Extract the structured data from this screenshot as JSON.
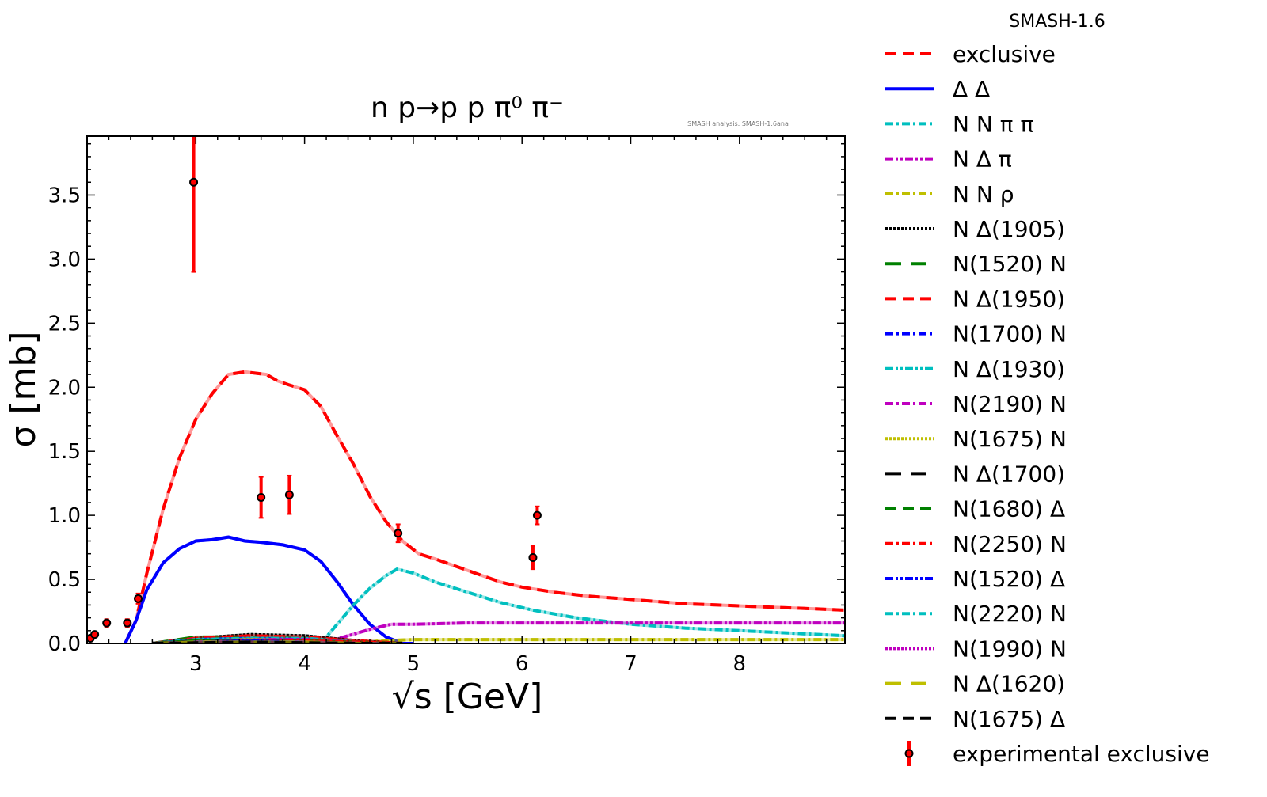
{
  "chart_data": {
    "type": "line",
    "title": "n p→p p π⁰ π⁻",
    "annotation": "SMASH analysis: SMASH-1.6ana",
    "xlabel": "√s [GeV]",
    "ylabel": "σ [mb]",
    "xlim": [
      2.0,
      8.97
    ],
    "ylim": [
      0.0,
      3.96
    ],
    "x_ticks": [
      3,
      4,
      5,
      6,
      7,
      8
    ],
    "x_tick_labels": [
      "3",
      "4",
      "5",
      "6",
      "7",
      "8"
    ],
    "y_ticks": [
      0.0,
      0.5,
      1.0,
      1.5,
      2.0,
      2.5,
      3.0,
      3.5
    ],
    "y_tick_labels": [
      "0.0",
      "0.5",
      "1.0",
      "1.5",
      "2.0",
      "2.5",
      "3.0",
      "3.5"
    ],
    "grid": false,
    "legend": {
      "title": "SMASH-1.6",
      "placement": "outside-right"
    },
    "series": [
      {
        "name": "exclusive",
        "color": "#ff0000",
        "style": "dashed",
        "x": [
          2.35,
          2.45,
          2.55,
          2.7,
          2.85,
          3.0,
          3.15,
          3.3,
          3.45,
          3.55,
          3.65,
          3.75,
          3.85,
          4.0,
          4.15,
          4.3,
          4.45,
          4.6,
          4.75,
          4.9,
          5.05,
          5.2,
          5.4,
          5.6,
          5.8,
          6.0,
          6.3,
          6.6,
          6.9,
          7.2,
          7.5,
          7.8,
          8.1,
          8.4,
          8.7,
          8.97
        ],
        "y": [
          0.0,
          0.18,
          0.55,
          1.05,
          1.45,
          1.75,
          1.95,
          2.1,
          2.12,
          2.11,
          2.1,
          2.05,
          2.02,
          1.98,
          1.85,
          1.62,
          1.4,
          1.15,
          0.95,
          0.8,
          0.7,
          0.66,
          0.6,
          0.54,
          0.48,
          0.44,
          0.4,
          0.37,
          0.35,
          0.33,
          0.31,
          0.3,
          0.29,
          0.28,
          0.27,
          0.26
        ]
      },
      {
        "name": "Δ Δ",
        "color": "#0000ff",
        "style": "dashed-dot",
        "x": [
          2.35,
          2.45,
          2.55,
          2.7,
          2.85,
          3.0,
          3.15,
          3.3,
          3.45,
          3.6,
          3.8,
          4.0,
          4.15,
          4.3,
          4.45,
          4.6,
          4.75,
          4.9,
          5.0
        ],
        "y": [
          0.0,
          0.18,
          0.42,
          0.63,
          0.74,
          0.8,
          0.81,
          0.83,
          0.8,
          0.79,
          0.77,
          0.73,
          0.64,
          0.48,
          0.3,
          0.15,
          0.05,
          0.0,
          0.0
        ]
      },
      {
        "name": "N N π π",
        "color": "#00bfbf",
        "style": "dash-dot",
        "x": [
          4.15,
          4.3,
          4.45,
          4.6,
          4.75,
          4.85,
          5.0,
          5.2,
          5.5,
          5.8,
          6.1,
          6.5,
          7.0,
          7.5,
          8.0,
          8.5,
          8.97
        ],
        "y": [
          0.0,
          0.15,
          0.3,
          0.43,
          0.53,
          0.58,
          0.55,
          0.48,
          0.4,
          0.32,
          0.26,
          0.2,
          0.15,
          0.12,
          0.1,
          0.08,
          0.06
        ]
      },
      {
        "name": "N Δ π",
        "color": "#bf00bf",
        "style": "dash-dot-dot",
        "x": [
          4.15,
          4.4,
          4.6,
          4.8,
          5.0,
          5.5,
          6.0,
          6.5,
          7.0,
          7.5,
          8.0,
          8.5,
          8.97
        ],
        "y": [
          0.0,
          0.06,
          0.11,
          0.15,
          0.15,
          0.16,
          0.16,
          0.16,
          0.16,
          0.16,
          0.16,
          0.16,
          0.16
        ]
      },
      {
        "name": "N N ρ",
        "color": "#bfbf00",
        "style": "dash-dot",
        "x": [
          4.4,
          4.7,
          5.0,
          6.0,
          7.0,
          8.0,
          8.97
        ],
        "y": [
          0.0,
          0.02,
          0.03,
          0.03,
          0.03,
          0.03,
          0.03
        ]
      },
      {
        "name": "N Δ(1905)",
        "color": "#000000",
        "style": "dotted",
        "x": [
          2.6,
          3.0,
          3.5,
          4.0,
          4.5,
          4.9
        ],
        "y": [
          0.0,
          0.04,
          0.07,
          0.06,
          0.02,
          0.0
        ]
      },
      {
        "name": "N(1520) N",
        "color": "#008000",
        "style": "long-dashed",
        "x": [
          2.6,
          3.0,
          3.5,
          4.0,
          4.5,
          4.9
        ],
        "y": [
          0.0,
          0.05,
          0.05,
          0.04,
          0.01,
          0.0
        ]
      },
      {
        "name": "N Δ(1950)",
        "color": "#ff0000",
        "style": "dashed",
        "x": [
          2.6,
          3.0,
          3.5,
          4.0,
          4.5,
          4.9
        ],
        "y": [
          0.0,
          0.04,
          0.06,
          0.05,
          0.02,
          0.0
        ]
      },
      {
        "name": "N(1700) N",
        "color": "#0000ff",
        "style": "dash-dot",
        "x": [
          2.6,
          3.0,
          3.5,
          4.0,
          4.5,
          4.9
        ],
        "y": [
          0.0,
          0.03,
          0.04,
          0.03,
          0.01,
          0.0
        ]
      },
      {
        "name": "N Δ(1930)",
        "color": "#00bfbf",
        "style": "dash-dot-dot",
        "x": [
          2.6,
          3.0,
          3.5,
          4.0,
          4.5,
          4.9
        ],
        "y": [
          0.0,
          0.03,
          0.04,
          0.04,
          0.01,
          0.0
        ]
      },
      {
        "name": "N(2190) N",
        "color": "#bf00bf",
        "style": "dash-dot",
        "x": [
          2.6,
          3.0,
          3.5,
          4.0,
          4.5,
          4.9
        ],
        "y": [
          0.0,
          0.02,
          0.03,
          0.03,
          0.01,
          0.0
        ]
      },
      {
        "name": "N(1675) N",
        "color": "#bfbf00",
        "style": "dotted",
        "x": [
          2.6,
          3.0,
          3.5,
          4.0,
          4.5,
          4.9
        ],
        "y": [
          0.0,
          0.02,
          0.03,
          0.02,
          0.01,
          0.0
        ]
      },
      {
        "name": "N Δ(1700)",
        "color": "#000000",
        "style": "long-dashed",
        "x": [
          2.6,
          3.0,
          3.5,
          4.0,
          4.5,
          4.9
        ],
        "y": [
          0.0,
          0.02,
          0.02,
          0.02,
          0.01,
          0.0
        ]
      },
      {
        "name": "N(1680) Δ",
        "color": "#008000",
        "style": "dashed",
        "x": [
          2.6,
          3.0,
          3.5,
          4.0,
          4.5,
          4.9
        ],
        "y": [
          0.0,
          0.02,
          0.02,
          0.02,
          0.01,
          0.0
        ]
      },
      {
        "name": "N(2250) N",
        "color": "#ff0000",
        "style": "dash-dot",
        "x": [
          2.6,
          3.0,
          3.5,
          4.0,
          4.5,
          4.9
        ],
        "y": [
          0.0,
          0.01,
          0.02,
          0.02,
          0.01,
          0.0
        ]
      },
      {
        "name": "N(1520) Δ",
        "color": "#0000ff",
        "style": "dash-dot-dot",
        "x": [
          2.6,
          3.0,
          3.5,
          4.0,
          4.5,
          4.9
        ],
        "y": [
          0.0,
          0.01,
          0.02,
          0.01,
          0.0,
          0.0
        ]
      },
      {
        "name": "N(2220) N",
        "color": "#00bfbf",
        "style": "dash-dot",
        "x": [
          2.6,
          3.0,
          3.5,
          4.0,
          4.5,
          4.9
        ],
        "y": [
          0.0,
          0.01,
          0.01,
          0.01,
          0.0,
          0.0
        ]
      },
      {
        "name": "N(1990) N",
        "color": "#bf00bf",
        "style": "dotted",
        "x": [
          2.6,
          3.0,
          3.5,
          4.0,
          4.5,
          4.9
        ],
        "y": [
          0.0,
          0.01,
          0.01,
          0.01,
          0.0,
          0.0
        ]
      },
      {
        "name": "N Δ(1620)",
        "color": "#bfbf00",
        "style": "long-dashed",
        "x": [
          2.6,
          3.0,
          3.5,
          4.0,
          4.5,
          4.9
        ],
        "y": [
          0.0,
          0.01,
          0.01,
          0.01,
          0.0,
          0.0
        ]
      },
      {
        "name": "N(1675) Δ",
        "color": "#000000",
        "style": "dashed",
        "x": [
          2.6,
          3.0,
          3.5,
          4.0,
          4.5,
          4.9
        ],
        "y": [
          0.0,
          0.005,
          0.01,
          0.005,
          0.0,
          0.0
        ]
      }
    ],
    "experimental": {
      "name": "experimental exclusive",
      "color": "#ff0000",
      "marker_edge": "#000000",
      "points": [
        {
          "x": 2.03,
          "y": 0.04,
          "err": 0.01
        },
        {
          "x": 2.07,
          "y": 0.07,
          "err": 0.01
        },
        {
          "x": 2.18,
          "y": 0.16,
          "err": 0.03
        },
        {
          "x": 2.37,
          "y": 0.16,
          "err": 0.03
        },
        {
          "x": 2.47,
          "y": 0.35,
          "err": 0.04
        },
        {
          "x": 2.98,
          "y": 3.6,
          "err": 0.7
        },
        {
          "x": 3.6,
          "y": 1.14,
          "err": 0.16
        },
        {
          "x": 3.86,
          "y": 1.16,
          "err": 0.15
        },
        {
          "x": 4.86,
          "y": 0.86,
          "err": 0.07
        },
        {
          "x": 6.1,
          "y": 0.67,
          "err": 0.09
        },
        {
          "x": 6.14,
          "y": 1.0,
          "err": 0.07
        }
      ]
    }
  }
}
